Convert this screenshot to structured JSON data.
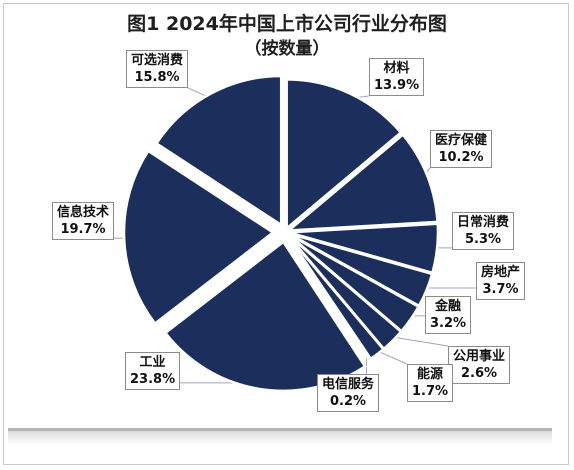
{
  "chart_data": {
    "type": "pie",
    "title": "图1  2024年中国上市公司行业分布图",
    "subtitle": "（按数量）",
    "slice_color": "#1b2e5c",
    "slices": [
      {
        "label": "材料",
        "value_label": "13.9%",
        "value": 13.9
      },
      {
        "label": "医疗保健",
        "value_label": "10.2%",
        "value": 10.2
      },
      {
        "label": "日常消费",
        "value_label": "5.3%",
        "value": 5.3
      },
      {
        "label": "房地产",
        "value_label": "3.7%",
        "value": 3.7
      },
      {
        "label": "金融",
        "value_label": "3.2%",
        "value": 3.2
      },
      {
        "label": "公用事业",
        "value_label": "2.6%",
        "value": 2.6
      },
      {
        "label": "能源",
        "value_label": "1.7%",
        "value": 1.7
      },
      {
        "label": "电信服务",
        "value_label": "0.2%",
        "value": 0.2
      },
      {
        "label": "工业",
        "value_label": "23.8%",
        "value": 23.8
      },
      {
        "label": "信息技术",
        "value_label": "19.7%",
        "value": 19.7
      },
      {
        "label": "可选消费",
        "value_label": "15.8%",
        "value": 15.8
      }
    ]
  }
}
